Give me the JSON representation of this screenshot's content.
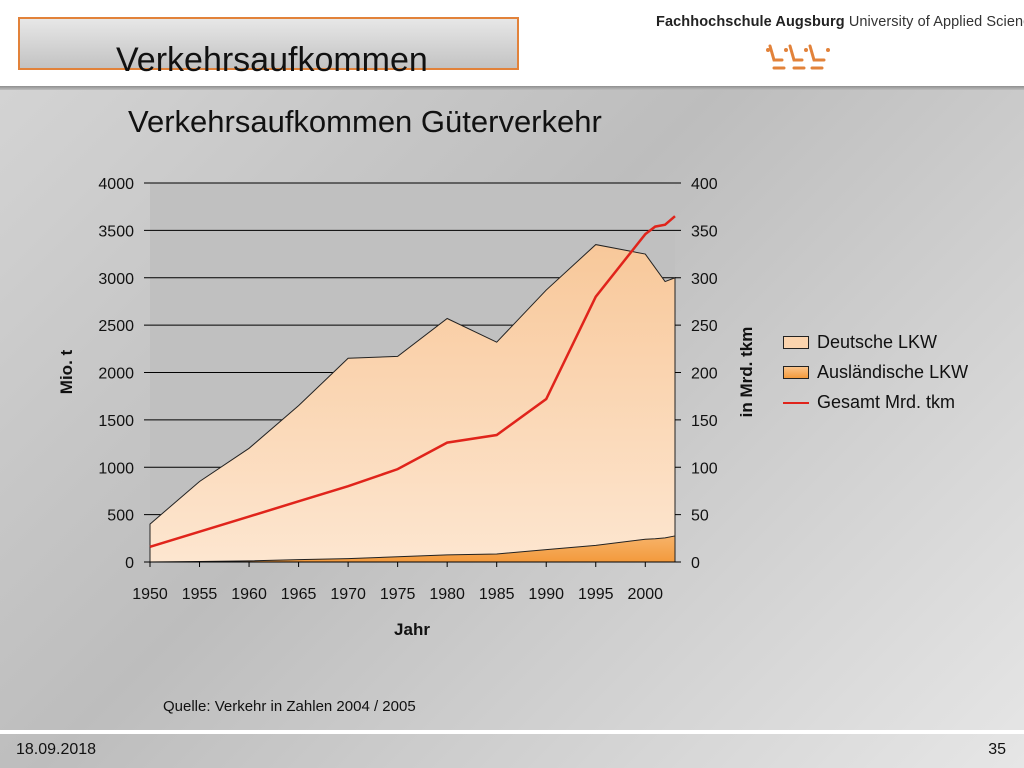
{
  "slide": {
    "title": "Verkehrsaufkommen",
    "university_bold": "Fachhochschule Augsburg",
    "university_rest": "University of Applied Sciences",
    "source": "Quelle: Verkehr in Zahlen 2004 / 2005",
    "date": "18.09.2018",
    "page_number": "35"
  },
  "colors": {
    "accent": "#e2823a",
    "deutsche_lkw": "#fbd4ae",
    "auslaendische_lkw": "#f39a3c",
    "gesamt_line": "#e0241b",
    "plot_background": "#c0c0c0"
  },
  "chart_data": {
    "type": "area",
    "title": "Verkehrsaufkommen Güterverkehr",
    "xlabel": "Jahr",
    "ylabel": "Mio. t",
    "y2label": "in Mrd. tkm",
    "xlim": [
      1950,
      2003
    ],
    "ylim": [
      0,
      4000
    ],
    "y2lim": [
      0,
      400
    ],
    "x_ticks": [
      1950,
      1955,
      1960,
      1965,
      1970,
      1975,
      1980,
      1985,
      1990,
      1995,
      2000
    ],
    "y_ticks": [
      0,
      500,
      1000,
      1500,
      2000,
      2500,
      3000,
      3500,
      4000
    ],
    "y2_ticks": [
      0,
      50,
      100,
      150,
      200,
      250,
      300,
      350,
      400
    ],
    "grid": true,
    "legend_position": "right",
    "series": [
      {
        "name": "Deutsche LKW",
        "type": "area",
        "axis": "left",
        "x": [
          1950,
          1955,
          1960,
          1965,
          1970,
          1975,
          1980,
          1985,
          1990,
          1995,
          2000,
          2002,
          2003
        ],
        "values": [
          400,
          850,
          1200,
          1650,
          2150,
          2170,
          2570,
          2320,
          2870,
          3350,
          3250,
          2960,
          3000
        ]
      },
      {
        "name": "Ausländische LKW",
        "type": "area",
        "axis": "left",
        "x": [
          1950,
          1955,
          1960,
          1965,
          1970,
          1975,
          1980,
          1985,
          1990,
          1995,
          2000,
          2001,
          2002,
          2003
        ],
        "values": [
          0,
          5,
          12,
          25,
          35,
          55,
          75,
          85,
          130,
          175,
          240,
          245,
          255,
          275
        ]
      },
      {
        "name": "Gesamt Mrd. tkm",
        "type": "line",
        "axis": "right",
        "x": [
          1950,
          1955,
          1960,
          1965,
          1970,
          1975,
          1980,
          1985,
          1990,
          1995,
          2000,
          2001,
          2002,
          2003
        ],
        "values": [
          16,
          32,
          48,
          64,
          80,
          98,
          126,
          134,
          172,
          280,
          346,
          354,
          356,
          365
        ]
      }
    ]
  }
}
